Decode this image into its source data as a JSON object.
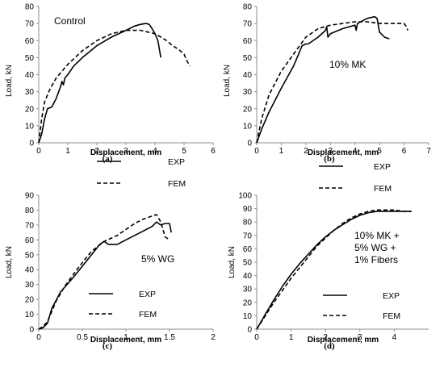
{
  "chart_data": [
    {
      "type": "line",
      "caption": "(a)",
      "annotation": "Control",
      "xlabel": "Displacement, mm",
      "ylabel": "Load, kN",
      "xlim": [
        0,
        6
      ],
      "ylim": [
        0,
        80
      ],
      "xticks": [
        "0",
        "1",
        "2",
        "3",
        "4",
        "5",
        "6"
      ],
      "yticks": [
        "0",
        "10",
        "20",
        "30",
        "40",
        "50",
        "60",
        "70",
        "80"
      ],
      "legend_position": "lower-right",
      "series": [
        {
          "name": "EXP",
          "style": "solid",
          "x": [
            0,
            0.1,
            0.2,
            0.3,
            0.45,
            0.6,
            0.75,
            0.8,
            0.85,
            0.9,
            1.0,
            1.2,
            1.5,
            2.0,
            2.5,
            3.0,
            3.3,
            3.5,
            3.7,
            3.8,
            3.9,
            4.0,
            4.1,
            4.15,
            4.2
          ],
          "y": [
            0,
            5,
            14,
            20,
            21,
            26,
            33,
            36,
            34,
            38,
            40,
            45,
            50,
            57,
            62,
            66,
            68.5,
            69.5,
            70,
            69.5,
            67,
            64,
            60,
            55,
            50
          ]
        },
        {
          "name": "FEM",
          "style": "dashed",
          "x": [
            0,
            0.1,
            0.2,
            0.4,
            0.6,
            1.0,
            1.5,
            2.0,
            2.5,
            3.0,
            3.5,
            4.0,
            4.2,
            4.4,
            4.6,
            4.8,
            5.0,
            5.1,
            5.2
          ],
          "y": [
            0,
            14,
            24,
            32,
            38,
            46,
            54,
            60,
            64,
            66,
            66,
            64,
            62,
            60,
            57,
            55,
            52,
            48,
            45
          ]
        }
      ]
    },
    {
      "type": "line",
      "caption": "(b)",
      "annotation": "10% MK",
      "xlabel": "Displacement, mm",
      "ylabel": "Load, kN",
      "xlim": [
        0,
        7
      ],
      "ylim": [
        0,
        80
      ],
      "xticks": [
        "0",
        "1",
        "2",
        "3",
        "4",
        "5",
        "6",
        "7"
      ],
      "yticks": [
        "0",
        "10",
        "20",
        "30",
        "40",
        "50",
        "60",
        "70",
        "80"
      ],
      "legend_position": "lower-right",
      "series": [
        {
          "name": "EXP",
          "style": "solid",
          "x": [
            0,
            0.2,
            0.5,
            1.0,
            1.5,
            1.85,
            2.0,
            2.1,
            2.5,
            2.8,
            2.85,
            2.9,
            3.0,
            3.5,
            4.0,
            4.05,
            4.1,
            4.5,
            4.8,
            4.9,
            5.0,
            5.2,
            5.4
          ],
          "y": [
            0,
            8,
            18,
            32,
            45,
            57,
            58,
            58,
            62,
            66,
            68,
            62,
            64,
            67,
            69,
            66,
            70,
            73,
            74,
            73,
            65,
            62,
            61
          ]
        },
        {
          "name": "FEM",
          "style": "dashed",
          "x": [
            0,
            0.2,
            0.5,
            1.0,
            1.5,
            2.0,
            2.5,
            3.0,
            3.5,
            4.0,
            4.5,
            5.0,
            5.5,
            6.0,
            6.1,
            6.15
          ],
          "y": [
            0,
            14,
            28,
            42,
            52,
            62,
            67,
            69,
            70,
            71,
            71,
            70,
            70,
            70,
            68,
            66
          ]
        }
      ]
    },
    {
      "type": "line",
      "caption": "(c)",
      "annotation": "5% WG",
      "xlabel": "Displacement, mm",
      "ylabel": "Load, kN",
      "xlim": [
        0,
        2
      ],
      "ylim": [
        0,
        90
      ],
      "xticks": [
        "0",
        "0.5",
        "1",
        "1.5",
        "2"
      ],
      "yticks": [
        "0",
        "10",
        "20",
        "30",
        "40",
        "50",
        "60",
        "70",
        "80",
        "90"
      ],
      "legend_position": "lower-right",
      "series": [
        {
          "name": "EXP",
          "style": "solid",
          "x": [
            0,
            0.05,
            0.1,
            0.15,
            0.25,
            0.4,
            0.55,
            0.7,
            0.75,
            0.8,
            0.9,
            1.0,
            1.1,
            1.2,
            1.3,
            1.35,
            1.4,
            1.45,
            1.5,
            1.52
          ],
          "y": [
            0,
            1,
            4,
            14,
            25,
            35,
            46,
            57,
            59,
            57,
            57,
            60,
            63,
            66,
            69,
            72,
            70,
            71,
            71,
            65
          ]
        },
        {
          "name": "FEM",
          "style": "dashed",
          "x": [
            0,
            0.05,
            0.1,
            0.2,
            0.3,
            0.45,
            0.6,
            0.75,
            0.9,
            1.0,
            1.1,
            1.2,
            1.3,
            1.35,
            1.4,
            1.45,
            1.5
          ],
          "y": [
            0,
            2,
            5,
            19,
            29,
            41,
            52,
            59,
            63,
            67,
            71,
            74,
            76,
            77,
            72,
            62,
            60
          ]
        }
      ]
    },
    {
      "type": "line",
      "caption": "(d)",
      "annotation": [
        "10% MK +",
        "5% WG +",
        "1% Fibers"
      ],
      "xlabel": "Displacement, mm",
      "ylabel": "Load, kN",
      "xlim": [
        0,
        5
      ],
      "ylim": [
        0,
        100
      ],
      "xticks": [
        "0",
        "1",
        "2",
        "3",
        "4"
      ],
      "yticks": [
        "0",
        "10",
        "20",
        "30",
        "40",
        "50",
        "60",
        "70",
        "80",
        "90",
        "100"
      ],
      "legend_position": "lower-right",
      "series": [
        {
          "name": "EXP",
          "style": "solid",
          "x": [
            0,
            0.25,
            0.5,
            0.75,
            1.0,
            1.25,
            1.5,
            1.75,
            2.0,
            2.25,
            2.5,
            2.75,
            3.0,
            3.25,
            3.5,
            3.75,
            4.0,
            4.25,
            4.5
          ],
          "y": [
            0,
            11,
            22,
            32,
            41,
            49,
            56,
            63,
            69,
            74,
            78,
            82,
            85,
            87,
            88,
            88,
            88,
            88,
            88
          ]
        },
        {
          "name": "FEM",
          "style": "dashed",
          "x": [
            0,
            0.25,
            0.5,
            0.75,
            1.0,
            1.25,
            1.5,
            1.75,
            2.0,
            2.25,
            2.5,
            2.75,
            3.0,
            3.25,
            3.5,
            3.75,
            4.0,
            4.25,
            4.5
          ],
          "y": [
            0,
            10,
            20,
            29,
            38,
            46,
            54,
            62,
            68,
            74,
            79,
            83,
            86,
            88,
            89,
            89,
            89,
            88,
            88
          ]
        }
      ]
    }
  ]
}
